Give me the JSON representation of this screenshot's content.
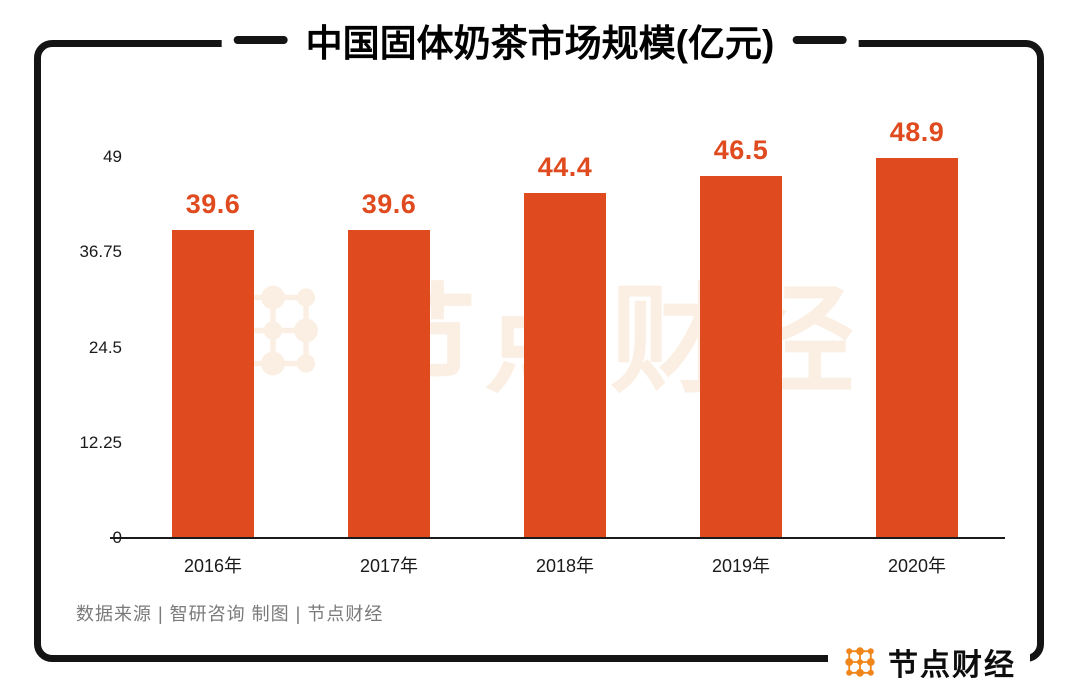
{
  "title": "中国固体奶茶市场规模(亿元)",
  "watermark_text": "节点财经",
  "source_text": "数据来源 | 智研咨询    制图 | 节点财经",
  "brand": {
    "name": "节点财经",
    "logo_color": "#F08519"
  },
  "chart_data": {
    "type": "bar",
    "title": "中国固体奶茶市场规模(亿元)",
    "categories": [
      "2016年",
      "2017年",
      "2018年",
      "2019年",
      "2020年"
    ],
    "values": [
      39.6,
      39.6,
      44.4,
      46.5,
      48.9
    ],
    "value_labels": [
      "39.6",
      "39.6",
      "44.4",
      "46.5",
      "48.9"
    ],
    "y_ticks": [
      0,
      12.25,
      24.5,
      36.75,
      49
    ],
    "ylim": [
      0,
      49
    ],
    "xlabel": "",
    "ylabel": "",
    "grid": false,
    "legend": false,
    "bar_color": "#E04A1F",
    "value_label_color": "#E04A1F"
  }
}
